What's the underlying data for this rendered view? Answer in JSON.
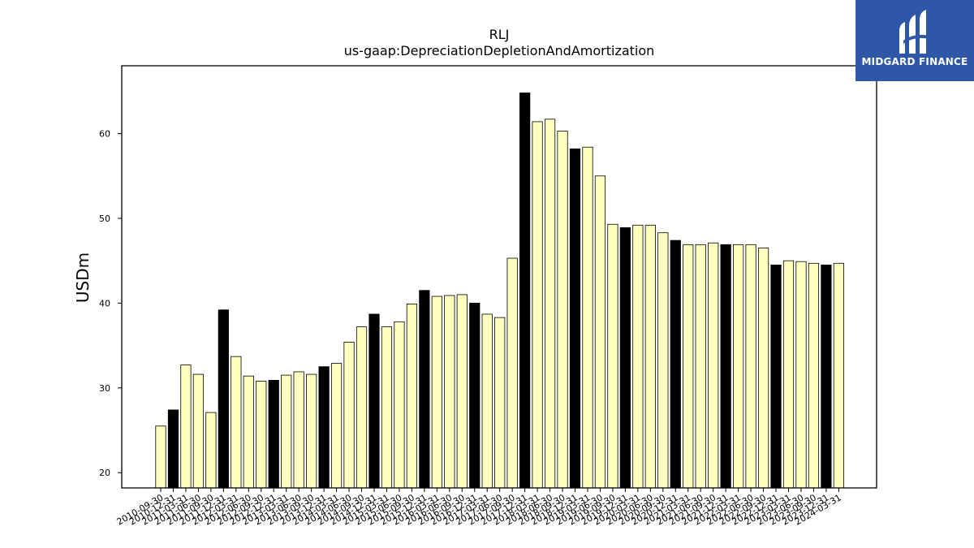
{
  "brand": {
    "name": "MIDGARD FINANCE",
    "bg_color": "#2f57a8"
  },
  "chart_data": {
    "type": "bar",
    "title": "RLJ",
    "subtitle": "us-gaap:DepreciationDepletionAndAmortization",
    "xlabel": "",
    "ylabel": "USDm",
    "ylim": [
      18.2,
      68.0
    ],
    "yticks": [
      20,
      30,
      40,
      50,
      60
    ],
    "grid": false,
    "highlight_rule": "Q4 / fiscal-year-end periods (-12-31) drawn black, others light yellow",
    "colors": {
      "regular": "#ffffc0",
      "highlight": "#000000",
      "edge": "#000000"
    },
    "categories": [
      "2010-09-30",
      "2010-12-31",
      "2011-03-31",
      "2011-06-30",
      "2011-09-30",
      "2011-12-31",
      "2012-03-31",
      "2012-06-30",
      "2012-09-30",
      "2012-12-31",
      "2013-03-31",
      "2013-06-30",
      "2013-09-30",
      "2013-12-31",
      "2014-03-31",
      "2014-06-30",
      "2014-09-30",
      "2014-12-31",
      "2015-03-31",
      "2015-06-30",
      "2015-09-30",
      "2015-12-31",
      "2016-03-31",
      "2016-06-30",
      "2016-09-30",
      "2016-12-31",
      "2017-03-31",
      "2017-06-30",
      "2017-09-30",
      "2017-12-31",
      "2018-03-31",
      "2018-06-30",
      "2018-09-30",
      "2018-12-31",
      "2019-03-31",
      "2019-06-30",
      "2019-09-30",
      "2019-12-31",
      "2020-03-31",
      "2020-06-30",
      "2020-09-30",
      "2020-12-31",
      "2021-03-31",
      "2021-06-30",
      "2021-09-30",
      "2021-12-31",
      "2022-03-31",
      "2022-06-30",
      "2022-09-30",
      "2022-12-31",
      "2023-03-31",
      "2023-06-30",
      "2023-09-30",
      "2023-12-31",
      "2024-03-31"
    ],
    "values": [
      25.5,
      27.4,
      32.7,
      31.6,
      27.1,
      39.2,
      33.7,
      31.4,
      30.8,
      30.9,
      31.5,
      31.9,
      31.6,
      32.5,
      32.9,
      35.4,
      37.2,
      38.7,
      37.2,
      37.8,
      39.9,
      41.5,
      40.8,
      40.9,
      41.0,
      40.0,
      38.7,
      38.3,
      45.3,
      64.8,
      61.4,
      61.7,
      60.3,
      58.2,
      58.4,
      55.0,
      49.3,
      48.9,
      49.2,
      49.2,
      48.3,
      47.4,
      46.9,
      46.9,
      47.1,
      46.9,
      46.9,
      46.9,
      46.5,
      44.5,
      45.0,
      44.9,
      44.7,
      44.5,
      44.7
    ]
  }
}
